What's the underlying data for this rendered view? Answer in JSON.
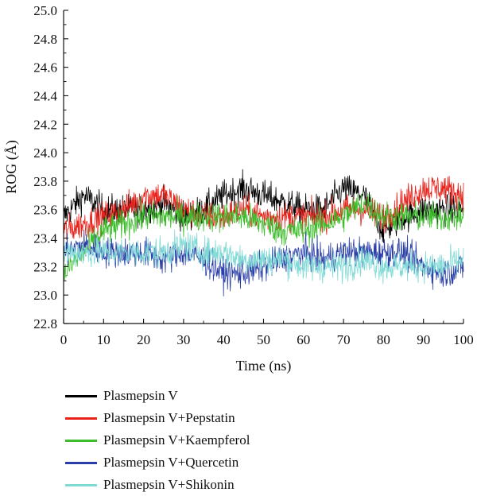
{
  "chart_data": {
    "type": "line",
    "title": "",
    "xlabel": "Time (ns)",
    "ylabel": "ROG (Å)",
    "xlim": [
      0,
      100
    ],
    "ylim": [
      22.8,
      25.0
    ],
    "x_ticks": [
      0,
      10,
      20,
      30,
      40,
      50,
      60,
      70,
      80,
      90,
      100
    ],
    "y_ticks": [
      22.8,
      23.0,
      23.2,
      23.4,
      23.6,
      23.8,
      24.0,
      24.2,
      24.4,
      24.6,
      24.8,
      25.0
    ],
    "x_tick_labels": [
      "0",
      "10",
      "20",
      "30",
      "40",
      "50",
      "60",
      "70",
      "80",
      "90",
      "100"
    ],
    "y_tick_labels": [
      "22.8",
      "23.0",
      "23.2",
      "23.4",
      "23.6",
      "23.8",
      "24.0",
      "24.2",
      "24.4",
      "24.6",
      "24.8",
      "25.0"
    ],
    "legend_position": "below",
    "x": [
      0,
      5,
      10,
      15,
      20,
      25,
      30,
      35,
      40,
      45,
      50,
      55,
      60,
      65,
      70,
      75,
      80,
      85,
      90,
      95,
      100
    ],
    "series": [
      {
        "name": "Plasmepsin V",
        "color": "#000000",
        "values": [
          23.55,
          23.7,
          23.6,
          23.6,
          23.6,
          23.65,
          23.55,
          23.6,
          23.7,
          23.75,
          23.7,
          23.65,
          23.6,
          23.6,
          23.75,
          23.7,
          23.45,
          23.55,
          23.6,
          23.6,
          23.6
        ]
      },
      {
        "name": "Plasmepsin V+Pepstatin",
        "color": "#e8221b",
        "values": [
          23.45,
          23.5,
          23.55,
          23.6,
          23.7,
          23.7,
          23.6,
          23.55,
          23.55,
          23.6,
          23.55,
          23.55,
          23.55,
          23.55,
          23.6,
          23.6,
          23.55,
          23.65,
          23.75,
          23.75,
          23.7
        ]
      },
      {
        "name": "Plasmepsin V+Kaempferol",
        "color": "#3dbd2c",
        "values": [
          23.15,
          23.3,
          23.45,
          23.5,
          23.55,
          23.55,
          23.55,
          23.55,
          23.55,
          23.55,
          23.5,
          23.45,
          23.45,
          23.5,
          23.55,
          23.65,
          23.55,
          23.55,
          23.55,
          23.55,
          23.55
        ]
      },
      {
        "name": "Plasmepsin V+Quercetin",
        "color": "#2a3ea8",
        "values": [
          23.3,
          23.35,
          23.3,
          23.3,
          23.3,
          23.25,
          23.3,
          23.25,
          23.15,
          23.15,
          23.2,
          23.25,
          23.3,
          23.25,
          23.3,
          23.3,
          23.3,
          23.3,
          23.2,
          23.15,
          23.2
        ]
      },
      {
        "name": "Plasmepsin V+Shikonin",
        "color": "#7fdad6",
        "values": [
          23.3,
          23.3,
          23.3,
          23.3,
          23.3,
          23.3,
          23.35,
          23.3,
          23.3,
          23.25,
          23.25,
          23.25,
          23.2,
          23.2,
          23.2,
          23.25,
          23.2,
          23.2,
          23.2,
          23.2,
          23.25
        ]
      }
    ]
  }
}
